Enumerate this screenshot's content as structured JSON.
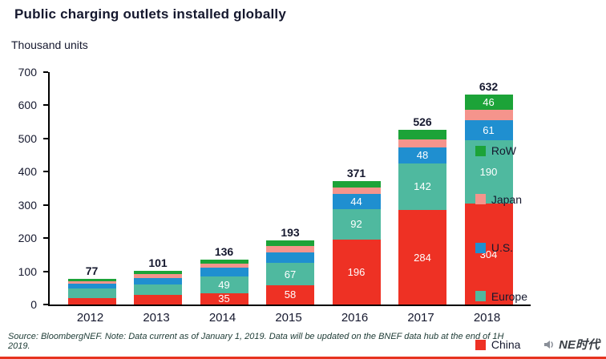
{
  "footer": {
    "source_note": "Source: BloombergNEF. Note: Data current as of January 1, 2019. Data will be updated on the BNEF data hub at the end of 1H 2019.",
    "logo_text": "NE时代"
  },
  "colors": {
    "china_red": "#ee3124",
    "europe_teal": "#4fb99f",
    "us_blue": "#1f8fd0",
    "japan_pink": "#f5948c",
    "row_green": "#1ca338",
    "axis_black": "#000000",
    "footer_rule_red": "#e6331f"
  },
  "chart_data": {
    "type": "bar",
    "stacked": true,
    "title": "Public charging outlets installed globally",
    "ylabel": "Thousand units",
    "xlabel": "",
    "ylim": [
      0,
      700
    ],
    "y_ticks": [
      0,
      100,
      200,
      300,
      400,
      500,
      600,
      700
    ],
    "grid": false,
    "legend_position": "right",
    "categories": [
      "2012",
      "2013",
      "2014",
      "2015",
      "2016",
      "2017",
      "2018"
    ],
    "totals": [
      77,
      101,
      136,
      193,
      371,
      526,
      632
    ],
    "label_threshold": 35,
    "series": [
      {
        "name": "China",
        "color": "#ee3124",
        "values": [
          20,
          30,
          35,
          58,
          196,
          284,
          304
        ]
      },
      {
        "name": "Europe",
        "color": "#4fb99f",
        "values": [
          28,
          31,
          49,
          67,
          92,
          142,
          190
        ]
      },
      {
        "name": "U.S.",
        "color": "#1f8fd0",
        "values": [
          14,
          19,
          26,
          32,
          44,
          48,
          61
        ]
      },
      {
        "name": "Japan",
        "color": "#f5948c",
        "values": [
          9,
          12,
          14,
          20,
          21,
          24,
          31
        ]
      },
      {
        "name": "RoW",
        "color": "#1ca338",
        "values": [
          6,
          9,
          12,
          16,
          18,
          28,
          46
        ]
      }
    ],
    "legend": [
      {
        "label": "RoW",
        "color": "#1ca338"
      },
      {
        "label": "Japan",
        "color": "#f5948c"
      },
      {
        "label": "U.S.",
        "color": "#1f8fd0"
      },
      {
        "label": "Europe",
        "color": "#4fb99f"
      },
      {
        "label": "China",
        "color": "#ee3124"
      }
    ]
  }
}
